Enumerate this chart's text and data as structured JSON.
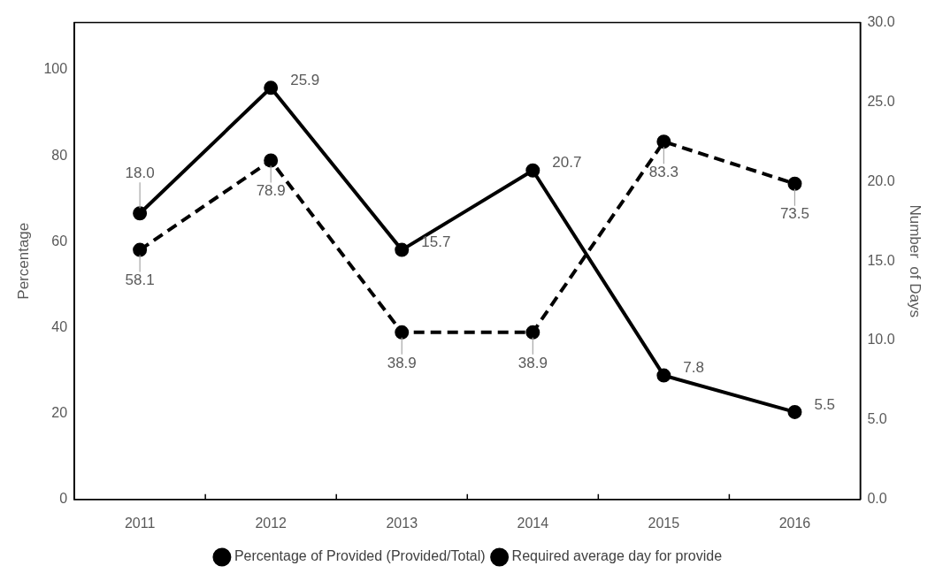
{
  "chart_data": {
    "type": "line",
    "categories": [
      "2011",
      "2012",
      "2013",
      "2014",
      "2015",
      "2016"
    ],
    "ylabel": "Percentage",
    "y2label": "Number  of Days",
    "ylim": [
      0,
      111
    ],
    "yticks": [
      0,
      20,
      40,
      60,
      80,
      100
    ],
    "y2lim": [
      0,
      30
    ],
    "y2ticks": [
      {
        "value": 0,
        "label": "0.0"
      },
      {
        "value": 5,
        "label": "5.0"
      },
      {
        "value": 10,
        "label": "10.0"
      },
      {
        "value": 15,
        "label": "15.0"
      },
      {
        "value": 20,
        "label": "20.0"
      },
      {
        "value": 25,
        "label": "25.0"
      },
      {
        "value": 30,
        "label": "30.0"
      }
    ],
    "series": [
      {
        "name": "Percentage of Provided (Provided/Total)",
        "color": "#000000",
        "values": [
          58.1,
          78.9,
          38.9,
          38.9,
          83.3,
          73.5
        ],
        "value_labels": [
          "58.1",
          "78.9",
          "38.9",
          "38.9",
          "83.3",
          "73.5"
        ],
        "line_style": "dashed"
      },
      {
        "name": "Required average day for provide",
        "color": "#000000",
        "values": [
          18.0,
          25.9,
          15.7,
          20.7,
          7.8,
          5.5
        ],
        "value_labels": [
          "18.0",
          "25.9",
          "15.7",
          "20.7",
          "7.8",
          "5.5"
        ],
        "axis": "y2",
        "line_style": "solid"
      }
    ],
    "marker": "circle",
    "grid": false,
    "legend": "bottom"
  }
}
